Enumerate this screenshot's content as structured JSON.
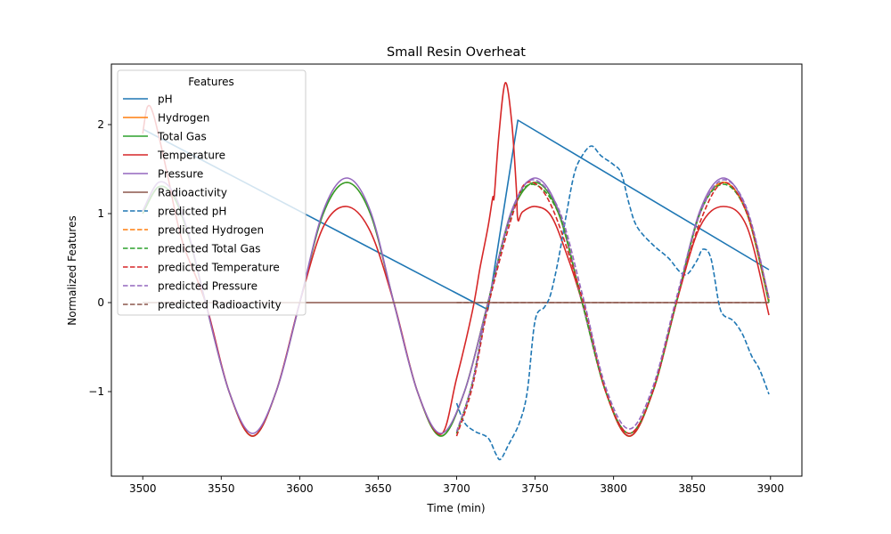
{
  "chart_data": {
    "type": "line",
    "title": "Small Resin Overheat",
    "xlabel": "Time (min)",
    "ylabel": "Normalized Features",
    "xlim": [
      3480,
      3920
    ],
    "ylim": [
      -1.95,
      2.68
    ],
    "xticks": [
      3500,
      3550,
      3600,
      3650,
      3700,
      3750,
      3800,
      3850,
      3900
    ],
    "yticks": [
      -1,
      0,
      1,
      2
    ],
    "ytick_labels": [
      "−1",
      "0",
      "1",
      "2"
    ],
    "grid": false,
    "legend": {
      "title": "Features",
      "placement": "top-left"
    },
    "series": [
      {
        "name": "pH",
        "color": "#1f77b4",
        "style": "solid",
        "points": [
          [
            3500,
            1.95
          ],
          [
            3720,
            -0.08
          ],
          [
            3739,
            2.05
          ],
          [
            3899,
            0.37
          ]
        ]
      },
      {
        "name": "Hydrogen",
        "color": "#ff7f0e",
        "style": "solid",
        "points": [
          [
            3500,
            1.0
          ],
          [
            3510,
            1.3
          ],
          [
            3520,
            1.18
          ],
          [
            3530,
            0.7
          ],
          [
            3540,
            0.0
          ],
          [
            3555,
            -1.0
          ],
          [
            3570,
            -1.5
          ],
          [
            3585,
            -1.0
          ],
          [
            3600,
            0.0
          ],
          [
            3615,
            1.0
          ],
          [
            3630,
            1.35
          ],
          [
            3645,
            1.0
          ],
          [
            3660,
            0.0
          ],
          [
            3675,
            -1.0
          ],
          [
            3690,
            -1.5
          ],
          [
            3705,
            -1.0
          ],
          [
            3720,
            0.0
          ],
          [
            3735,
            1.0
          ],
          [
            3750,
            1.35
          ],
          [
            3765,
            1.0
          ],
          [
            3780,
            0.0
          ],
          [
            3795,
            -1.0
          ],
          [
            3810,
            -1.5
          ],
          [
            3825,
            -1.0
          ],
          [
            3840,
            0.0
          ],
          [
            3855,
            1.0
          ],
          [
            3870,
            1.35
          ],
          [
            3885,
            1.0
          ],
          [
            3899,
            0.0
          ]
        ]
      },
      {
        "name": "Total Gas",
        "color": "#2ca02c",
        "style": "solid",
        "points": [
          [
            3500,
            1.0
          ],
          [
            3510,
            1.3
          ],
          [
            3520,
            1.18
          ],
          [
            3530,
            0.7
          ],
          [
            3540,
            0.0
          ],
          [
            3555,
            -1.0
          ],
          [
            3570,
            -1.5
          ],
          [
            3585,
            -1.0
          ],
          [
            3600,
            0.0
          ],
          [
            3615,
            1.0
          ],
          [
            3630,
            1.35
          ],
          [
            3645,
            1.0
          ],
          [
            3660,
            0.0
          ],
          [
            3675,
            -1.0
          ],
          [
            3690,
            -1.5
          ],
          [
            3705,
            -1.0
          ],
          [
            3720,
            0.0
          ],
          [
            3735,
            1.0
          ],
          [
            3750,
            1.35
          ],
          [
            3765,
            1.0
          ],
          [
            3780,
            0.0
          ],
          [
            3795,
            -1.0
          ],
          [
            3810,
            -1.5
          ],
          [
            3825,
            -1.0
          ],
          [
            3840,
            0.0
          ],
          [
            3855,
            1.0
          ],
          [
            3870,
            1.35
          ],
          [
            3885,
            1.0
          ],
          [
            3899,
            0.0
          ]
        ]
      },
      {
        "name": "Temperature",
        "color": "#d62728",
        "style": "solid",
        "points": [
          [
            3500,
            1.9
          ],
          [
            3503,
            2.2
          ],
          [
            3507,
            2.1
          ],
          [
            3515,
            1.5
          ],
          [
            3525,
            0.7
          ],
          [
            3540,
            0.0
          ],
          [
            3555,
            -1.0
          ],
          [
            3570,
            -1.5
          ],
          [
            3585,
            -1.0
          ],
          [
            3600,
            0.0
          ],
          [
            3615,
            0.85
          ],
          [
            3630,
            1.08
          ],
          [
            3645,
            0.8
          ],
          [
            3660,
            0.0
          ],
          [
            3675,
            -1.0
          ],
          [
            3690,
            -1.48
          ],
          [
            3700,
            -0.85
          ],
          [
            3710,
            -0.1
          ],
          [
            3715,
            0.4
          ],
          [
            3720,
            0.85
          ],
          [
            3723,
            1.18
          ],
          [
            3724,
            1.2
          ],
          [
            3727,
            1.9
          ],
          [
            3731,
            2.47
          ],
          [
            3735,
            2.05
          ],
          [
            3738,
            1.3
          ],
          [
            3739,
            0.93
          ],
          [
            3742,
            1.02
          ],
          [
            3750,
            1.08
          ],
          [
            3760,
            0.98
          ],
          [
            3770,
            0.55
          ],
          [
            3780,
            0.0
          ],
          [
            3795,
            -1.0
          ],
          [
            3810,
            -1.5
          ],
          [
            3825,
            -1.0
          ],
          [
            3840,
            0.0
          ],
          [
            3855,
            0.85
          ],
          [
            3870,
            1.08
          ],
          [
            3885,
            0.85
          ],
          [
            3899,
            -0.14
          ]
        ]
      },
      {
        "name": "Pressure",
        "color": "#9467bd",
        "style": "solid",
        "points": [
          [
            3500,
            1.03
          ],
          [
            3510,
            1.35
          ],
          [
            3520,
            1.22
          ],
          [
            3530,
            0.72
          ],
          [
            3540,
            0.0
          ],
          [
            3555,
            -1.0
          ],
          [
            3570,
            -1.47
          ],
          [
            3585,
            -1.0
          ],
          [
            3600,
            0.0
          ],
          [
            3615,
            1.03
          ],
          [
            3630,
            1.4
          ],
          [
            3645,
            1.03
          ],
          [
            3660,
            0.0
          ],
          [
            3675,
            -1.0
          ],
          [
            3690,
            -1.47
          ],
          [
            3705,
            -1.0
          ],
          [
            3720,
            0.0
          ],
          [
            3735,
            1.03
          ],
          [
            3750,
            1.4
          ],
          [
            3765,
            1.03
          ],
          [
            3780,
            0.0
          ],
          [
            3795,
            -1.0
          ],
          [
            3810,
            -1.47
          ],
          [
            3825,
            -1.0
          ],
          [
            3840,
            0.0
          ],
          [
            3855,
            1.03
          ],
          [
            3870,
            1.4
          ],
          [
            3885,
            1.03
          ],
          [
            3899,
            0.05
          ]
        ]
      },
      {
        "name": "Radioactivity",
        "color": "#8c564b",
        "style": "solid",
        "points": [
          [
            3500,
            0.0
          ],
          [
            3899,
            0.0
          ]
        ]
      },
      {
        "name": "predicted pH",
        "color": "#1f77b4",
        "style": "dashed",
        "points": [
          [
            3700,
            -1.13
          ],
          [
            3705,
            -1.35
          ],
          [
            3712,
            -1.45
          ],
          [
            3720,
            -1.52
          ],
          [
            3725,
            -1.7
          ],
          [
            3728,
            -1.76
          ],
          [
            3733,
            -1.6
          ],
          [
            3740,
            -1.35
          ],
          [
            3745,
            -1.0
          ],
          [
            3750,
            -0.2
          ],
          [
            3756,
            -0.05
          ],
          [
            3760,
            0.1
          ],
          [
            3765,
            0.5
          ],
          [
            3770,
            1.0
          ],
          [
            3775,
            1.45
          ],
          [
            3780,
            1.65
          ],
          [
            3786,
            1.76
          ],
          [
            3792,
            1.65
          ],
          [
            3800,
            1.55
          ],
          [
            3805,
            1.45
          ],
          [
            3810,
            1.1
          ],
          [
            3815,
            0.85
          ],
          [
            3825,
            0.65
          ],
          [
            3835,
            0.5
          ],
          [
            3842,
            0.35
          ],
          [
            3847,
            0.32
          ],
          [
            3853,
            0.47
          ],
          [
            3857,
            0.6
          ],
          [
            3862,
            0.5
          ],
          [
            3867,
            0.0
          ],
          [
            3870,
            -0.14
          ],
          [
            3876,
            -0.2
          ],
          [
            3882,
            -0.35
          ],
          [
            3888,
            -0.6
          ],
          [
            3893,
            -0.75
          ],
          [
            3899,
            -1.03
          ]
        ]
      },
      {
        "name": "predicted Hydrogen",
        "color": "#ff7f0e",
        "style": "dashed",
        "points": [
          [
            3700,
            -1.47
          ],
          [
            3710,
            -0.9
          ],
          [
            3720,
            0.0
          ],
          [
            3735,
            1.0
          ],
          [
            3748,
            1.33
          ],
          [
            3765,
            1.0
          ],
          [
            3780,
            0.0
          ],
          [
            3795,
            -1.0
          ],
          [
            3810,
            -1.47
          ],
          [
            3825,
            -1.0
          ],
          [
            3840,
            0.0
          ],
          [
            3855,
            1.0
          ],
          [
            3870,
            1.35
          ],
          [
            3885,
            1.0
          ],
          [
            3899,
            0.02
          ]
        ]
      },
      {
        "name": "predicted Total Gas",
        "color": "#2ca02c",
        "style": "dashed",
        "points": [
          [
            3700,
            -1.47
          ],
          [
            3710,
            -0.9
          ],
          [
            3720,
            0.0
          ],
          [
            3735,
            1.0
          ],
          [
            3748,
            1.33
          ],
          [
            3765,
            1.0
          ],
          [
            3780,
            0.0
          ],
          [
            3795,
            -1.0
          ],
          [
            3810,
            -1.47
          ],
          [
            3825,
            -1.0
          ],
          [
            3840,
            0.0
          ],
          [
            3855,
            1.0
          ],
          [
            3870,
            1.33
          ],
          [
            3885,
            1.0
          ],
          [
            3899,
            0.02
          ]
        ]
      },
      {
        "name": "predicted Temperature",
        "color": "#d62728",
        "style": "dashed",
        "points": [
          [
            3700,
            -1.5
          ],
          [
            3710,
            -0.95
          ],
          [
            3720,
            -0.05
          ],
          [
            3735,
            0.95
          ],
          [
            3745,
            1.35
          ],
          [
            3760,
            1.1
          ],
          [
            3780,
            0.05
          ],
          [
            3795,
            -1.0
          ],
          [
            3810,
            -1.47
          ],
          [
            3825,
            -1.0
          ],
          [
            3840,
            0.0
          ],
          [
            3855,
            0.9
          ],
          [
            3870,
            1.35
          ],
          [
            3885,
            1.0
          ],
          [
            3899,
            0.05
          ]
        ]
      },
      {
        "name": "predicted Pressure",
        "color": "#9467bd",
        "style": "dashed",
        "points": [
          [
            3700,
            -1.45
          ],
          [
            3710,
            -0.9
          ],
          [
            3720,
            0.0
          ],
          [
            3735,
            1.0
          ],
          [
            3748,
            1.38
          ],
          [
            3765,
            1.05
          ],
          [
            3780,
            0.1
          ],
          [
            3795,
            -0.95
          ],
          [
            3810,
            -1.42
          ],
          [
            3825,
            -0.95
          ],
          [
            3840,
            0.05
          ],
          [
            3855,
            1.0
          ],
          [
            3870,
            1.38
          ],
          [
            3885,
            1.05
          ],
          [
            3899,
            0.05
          ]
        ]
      },
      {
        "name": "predicted Radioactivity",
        "color": "#8c564b",
        "style": "dashed",
        "points": [
          [
            3700,
            0.0
          ],
          [
            3899,
            0.0
          ]
        ]
      }
    ]
  }
}
